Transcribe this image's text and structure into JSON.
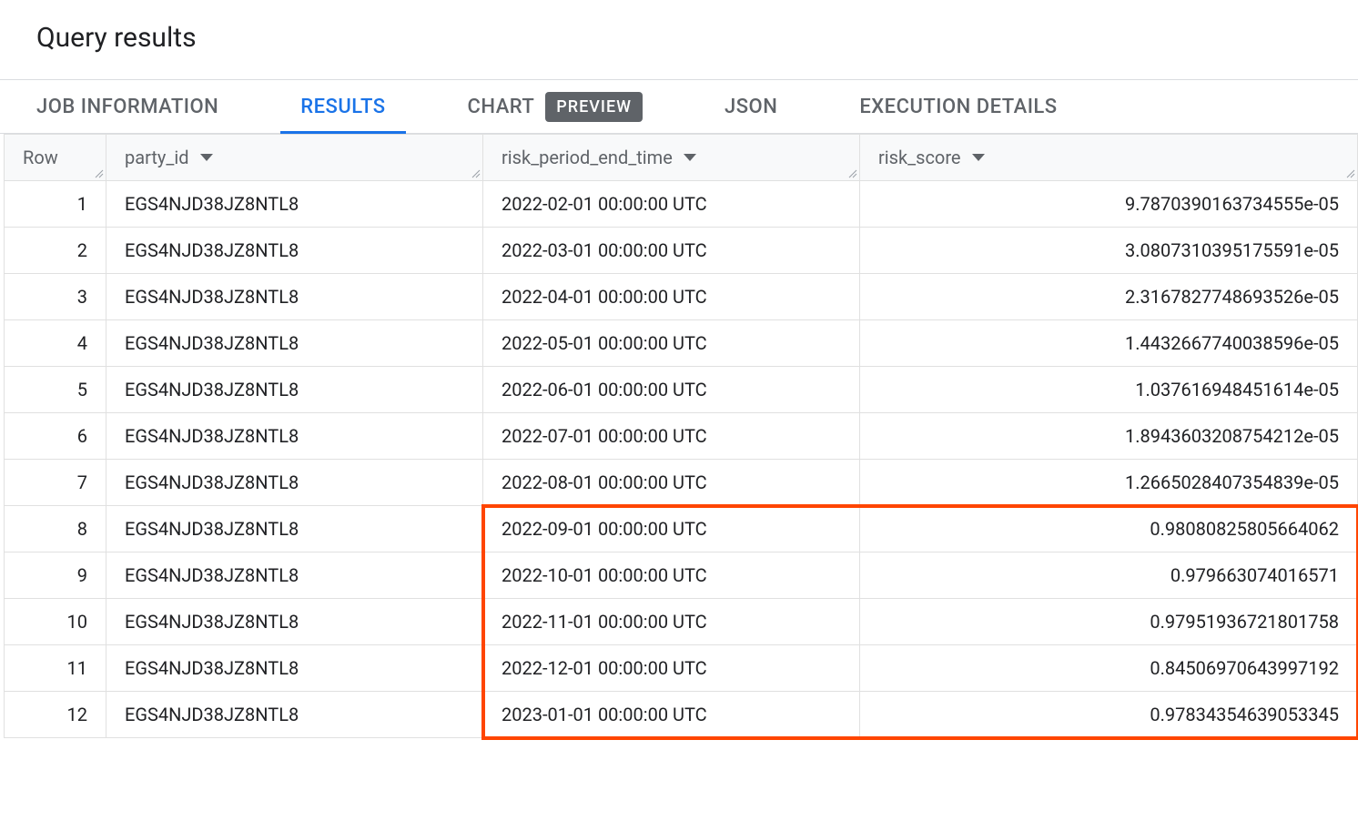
{
  "title": "Query results",
  "tabs": {
    "job_info": "JOB INFORMATION",
    "results": "RESULTS",
    "chart": "CHART",
    "chart_badge": "PREVIEW",
    "json": "JSON",
    "execution": "EXECUTION DETAILS"
  },
  "columns": {
    "row": "Row",
    "party_id": "party_id",
    "risk_period_end_time": "risk_period_end_time",
    "risk_score": "risk_score"
  },
  "rows": [
    {
      "n": "1",
      "party_id": "EGS4NJD38JZ8NTL8",
      "time": "2022-02-01 00:00:00 UTC",
      "score": "9.7870390163734555e-05"
    },
    {
      "n": "2",
      "party_id": "EGS4NJD38JZ8NTL8",
      "time": "2022-03-01 00:00:00 UTC",
      "score": "3.0807310395175591e-05"
    },
    {
      "n": "3",
      "party_id": "EGS4NJD38JZ8NTL8",
      "time": "2022-04-01 00:00:00 UTC",
      "score": "2.3167827748693526e-05"
    },
    {
      "n": "4",
      "party_id": "EGS4NJD38JZ8NTL8",
      "time": "2022-05-01 00:00:00 UTC",
      "score": "1.4432667740038596e-05"
    },
    {
      "n": "5",
      "party_id": "EGS4NJD38JZ8NTL8",
      "time": "2022-06-01 00:00:00 UTC",
      "score": "1.037616948451614e-05"
    },
    {
      "n": "6",
      "party_id": "EGS4NJD38JZ8NTL8",
      "time": "2022-07-01 00:00:00 UTC",
      "score": "1.8943603208754212e-05"
    },
    {
      "n": "7",
      "party_id": "EGS4NJD38JZ8NTL8",
      "time": "2022-08-01 00:00:00 UTC",
      "score": "1.2665028407354839e-05"
    },
    {
      "n": "8",
      "party_id": "EGS4NJD38JZ8NTL8",
      "time": "2022-09-01 00:00:00 UTC",
      "score": "0.98080825805664062"
    },
    {
      "n": "9",
      "party_id": "EGS4NJD38JZ8NTL8",
      "time": "2022-10-01 00:00:00 UTC",
      "score": "0.979663074016571"
    },
    {
      "n": "10",
      "party_id": "EGS4NJD38JZ8NTL8",
      "time": "2022-11-01 00:00:00 UTC",
      "score": "0.97951936721801758"
    },
    {
      "n": "11",
      "party_id": "EGS4NJD38JZ8NTL8",
      "time": "2022-12-01 00:00:00 UTC",
      "score": "0.84506970643997192"
    },
    {
      "n": "12",
      "party_id": "EGS4NJD38JZ8NTL8",
      "time": "2023-01-01 00:00:00 UTC",
      "score": "0.97834354639053345"
    }
  ],
  "highlight": {
    "color": "#ff4500",
    "start_row_index": 7,
    "end_row_index": 11,
    "covers_columns": [
      "risk_period_end_time",
      "risk_score"
    ]
  },
  "colors": {
    "tab_active": "#1a73e8",
    "tab_inactive": "#5f6368",
    "badge_bg": "#5f6368",
    "border": "#e0e0e0",
    "header_bg": "#f8f9fa",
    "highlight_border": "#ff4500"
  }
}
